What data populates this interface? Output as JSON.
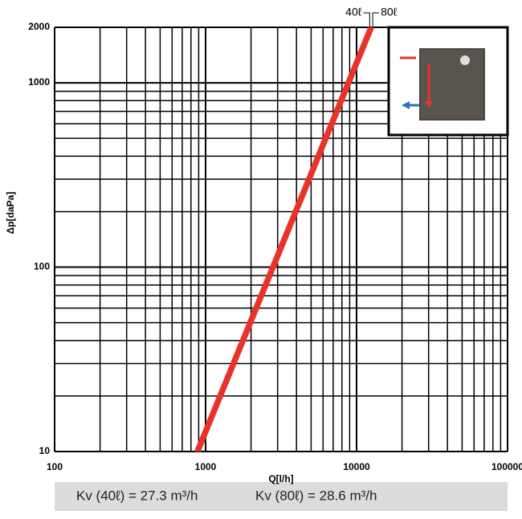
{
  "chart_data": {
    "type": "line",
    "log_x": true,
    "log_y": true,
    "grid": true,
    "minor_grid": true,
    "xlabel": "Q[l/h]",
    "ylabel": "Δp[daPa]",
    "xlim": [
      100,
      100000
    ],
    "ylim": [
      10,
      2000
    ],
    "xticks": [
      100,
      1000,
      10000,
      100000
    ],
    "yticks": [
      10,
      100,
      1000,
      2000
    ],
    "series": [
      {
        "name": "40ℓ",
        "color": "#e8332a",
        "x": [
          863,
          12209
        ],
        "values": [
          10,
          2000
        ]
      },
      {
        "name": "80ℓ",
        "color": "#e8332a",
        "x": [
          904,
          12790
        ],
        "values": [
          10,
          2000
        ]
      }
    ],
    "footer": [
      "Kv (40ℓ) = 27.3 m³/h",
      "Kv (80ℓ) = 28.6 m³/h"
    ]
  }
}
